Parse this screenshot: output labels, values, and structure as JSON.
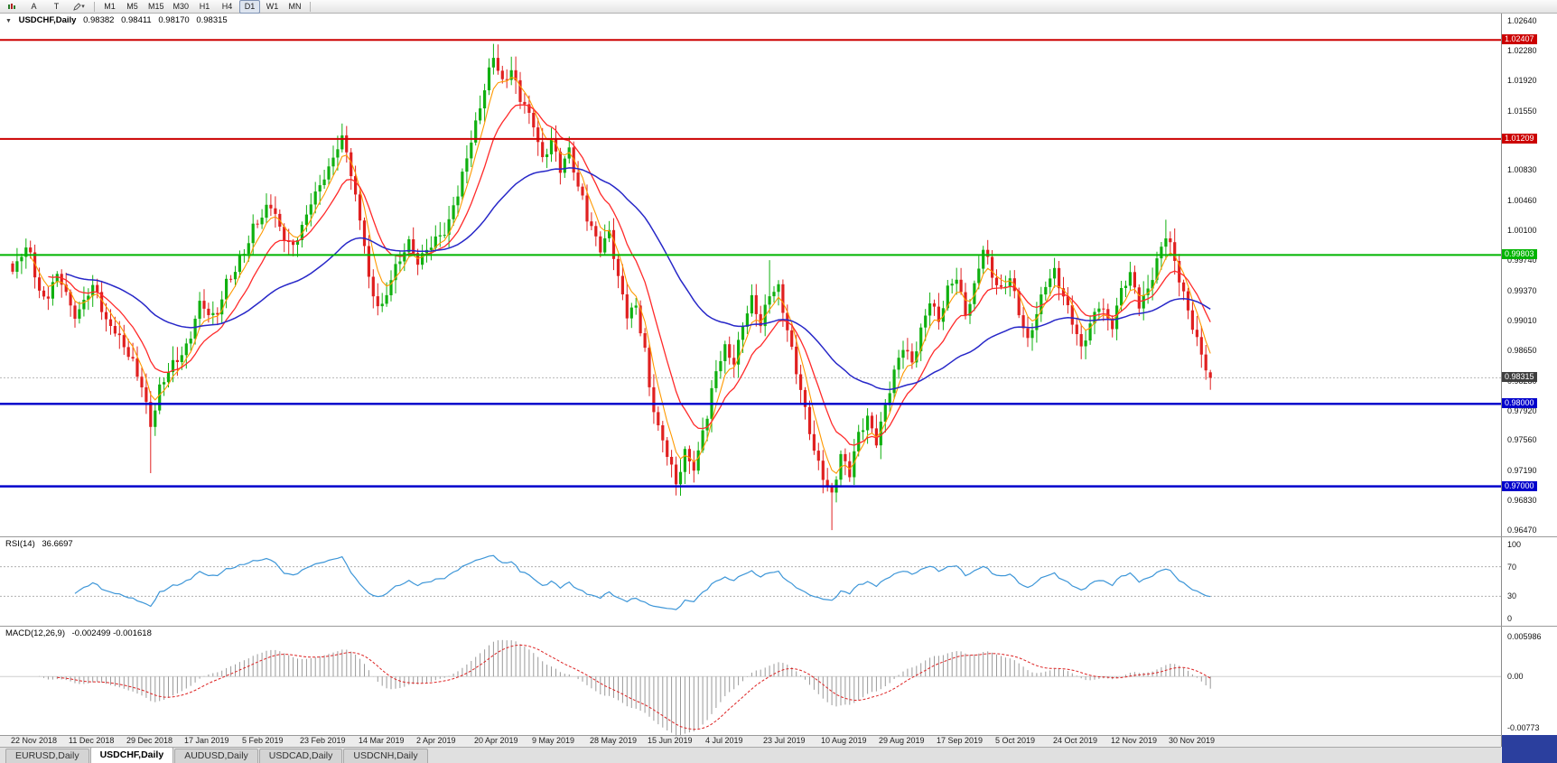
{
  "toolbar": {
    "tool_a": "A",
    "tool_t": "T",
    "chevron": "▾",
    "timeframes": [
      "M1",
      "M5",
      "M15",
      "M30",
      "H1",
      "H4",
      "D1",
      "W1",
      "MN"
    ],
    "active_timeframe": "D1"
  },
  "chart": {
    "collapse_arrow": "▼",
    "symbol_title": "USDCHF,Daily",
    "open": "0.98382",
    "high": "0.98411",
    "low": "0.98170",
    "close": "0.98315"
  },
  "rsi": {
    "title": "RSI(14)",
    "value": "36.6697",
    "axis": [
      "100",
      "70",
      "30",
      "0"
    ]
  },
  "macd": {
    "title": "MACD(12,26,9)",
    "value": "-0.002499 -0.001618",
    "axis": [
      "0.005986",
      "0.00",
      "-0.00773"
    ]
  },
  "tabs": [
    {
      "label": "EURUSD,Daily",
      "active": false
    },
    {
      "label": "USDCHF,Daily",
      "active": true
    },
    {
      "label": "AUDUSD,Daily",
      "active": false
    },
    {
      "label": "USDCAD,Daily",
      "active": false
    },
    {
      "label": "USDCNH,Daily",
      "active": false
    }
  ],
  "chart_data": {
    "type": "candlestick",
    "symbol": "USDCHF",
    "timeframe": "Daily",
    "bars_total": 270,
    "current_bar": {
      "open": 0.98382,
      "high": 0.98411,
      "low": 0.9817,
      "close": 0.98315
    },
    "current_price": 0.98315,
    "current_price_label": "0.98315",
    "price_scale": {
      "max": 1.02728,
      "min": 0.96394
    },
    "y_ticks": [
      "1.02640",
      "1.02280",
      "1.01920",
      "1.01550",
      "1.01190",
      "1.00830",
      "1.00460",
      "1.00100",
      "0.99740",
      "0.99370",
      "0.99010",
      "0.98650",
      "0.98280",
      "0.97920",
      "0.97560",
      "0.97190",
      "0.96830",
      "0.96470"
    ],
    "x_ticks": [
      {
        "label": "22 Nov 2018",
        "bar": 0
      },
      {
        "label": "11 Dec 2018",
        "bar": 13
      },
      {
        "label": "29 Dec 2018",
        "bar": 26
      },
      {
        "label": "17 Jan 2019",
        "bar": 39
      },
      {
        "label": "5 Feb 2019",
        "bar": 52
      },
      {
        "label": "23 Feb 2019",
        "bar": 65
      },
      {
        "label": "14 Mar 2019",
        "bar": 78
      },
      {
        "label": "2 Apr 2019",
        "bar": 91
      },
      {
        "label": "20 Apr 2019",
        "bar": 104
      },
      {
        "label": "9 May 2019",
        "bar": 117
      },
      {
        "label": "28 May 2019",
        "bar": 130
      },
      {
        "label": "15 Jun 2019",
        "bar": 143
      },
      {
        "label": "4 Jul 2019",
        "bar": 156
      },
      {
        "label": "23 Jul 2019",
        "bar": 169
      },
      {
        "label": "10 Aug 2019",
        "bar": 182
      },
      {
        "label": "29 Aug 2019",
        "bar": 195
      },
      {
        "label": "17 Sep 2019",
        "bar": 208
      },
      {
        "label": "5 Oct 2019",
        "bar": 221
      },
      {
        "label": "24 Oct 2019",
        "bar": 234
      },
      {
        "label": "12 Nov 2019",
        "bar": 247
      },
      {
        "label": "30 Nov 2019",
        "bar": 260
      }
    ],
    "levels": [
      {
        "label": "1.02407",
        "price": 1.02407,
        "color": "#cc0000",
        "width": 2
      },
      {
        "label": "1.01209",
        "price": 1.01209,
        "color": "#cc0000",
        "width": 2
      },
      {
        "label": "0.99803",
        "price": 0.99803,
        "color": "#00b400",
        "width": 2
      },
      {
        "label": "0.98000",
        "price": 0.98,
        "color": "#0000cc",
        "width": 2.5
      },
      {
        "label": "0.97000",
        "price": 0.97,
        "color": "#0000cc",
        "width": 2.5
      }
    ],
    "colors": {
      "up": "#10b010",
      "down": "#e02020",
      "ma_fast": "#ff9900",
      "ma_mid": "#ff2a2a",
      "ma_slow": "#2727c8",
      "rsi": "#3d96d8",
      "rsi_level": "#b0b0b0",
      "macd_hist": "#9a9a9a",
      "macd_signal": "#dd2222",
      "current_badge": "#3f3f3f",
      "current_line": "#b8b8b8"
    },
    "price_path_anchors": [
      [
        0,
        0.996
      ],
      [
        3,
        0.9985
      ],
      [
        7,
        0.993
      ],
      [
        10,
        0.9955
      ],
      [
        14,
        0.9905
      ],
      [
        18,
        0.9945
      ],
      [
        22,
        0.989
      ],
      [
        26,
        0.9862
      ],
      [
        29,
        0.9828
      ],
      [
        31,
        0.9772
      ],
      [
        33,
        0.9815
      ],
      [
        36,
        0.9848
      ],
      [
        39,
        0.9872
      ],
      [
        42,
        0.9918
      ],
      [
        45,
        0.9902
      ],
      [
        49,
        0.9958
      ],
      [
        52,
        0.9984
      ],
      [
        55,
        1.0018
      ],
      [
        58,
        1.0044
      ],
      [
        61,
        1.0004
      ],
      [
        63,
        0.9986
      ],
      [
        65,
        1.0012
      ],
      [
        68,
        1.0058
      ],
      [
        71,
        1.0088
      ],
      [
        74,
        1.0119
      ],
      [
        76,
        1.0078
      ],
      [
        78,
        1.0022
      ],
      [
        81,
        0.9932
      ],
      [
        83,
        0.9916
      ],
      [
        86,
        0.9962
      ],
      [
        89,
        0.9998
      ],
      [
        91,
        0.9976
      ],
      [
        94,
        0.999
      ],
      [
        97,
        1.0006
      ],
      [
        100,
        1.0058
      ],
      [
        102,
        1.0102
      ],
      [
        104,
        1.0136
      ],
      [
        106,
        1.0178
      ],
      [
        108,
        1.0222
      ],
      [
        110,
        1.0192
      ],
      [
        112,
        1.0208
      ],
      [
        114,
        1.0168
      ],
      [
        117,
        1.0136
      ],
      [
        119,
        1.0096
      ],
      [
        121,
        1.0124
      ],
      [
        123,
        1.0086
      ],
      [
        125,
        1.0104
      ],
      [
        127,
        1.0058
      ],
      [
        130,
        1.0016
      ],
      [
        132,
        0.9992
      ],
      [
        134,
        1.0008
      ],
      [
        136,
        0.9948
      ],
      [
        138,
        0.9906
      ],
      [
        140,
        0.992
      ],
      [
        142,
        0.9868
      ],
      [
        143,
        0.9822
      ],
      [
        145,
        0.9768
      ],
      [
        147,
        0.9736
      ],
      [
        149,
        0.9702
      ],
      [
        151,
        0.9744
      ],
      [
        153,
        0.9726
      ],
      [
        156,
        0.9782
      ],
      [
        158,
        0.9838
      ],
      [
        160,
        0.9868
      ],
      [
        162,
        0.9854
      ],
      [
        164,
        0.9898
      ],
      [
        166,
        0.9924
      ],
      [
        168,
        0.9892
      ],
      [
        170,
        0.9934
      ],
      [
        172,
        0.9944
      ],
      [
        174,
        0.9892
      ],
      [
        176,
        0.9838
      ],
      [
        178,
        0.9788
      ],
      [
        180,
        0.9742
      ],
      [
        182,
        0.9716
      ],
      [
        184,
        0.9692
      ],
      [
        186,
        0.9736
      ],
      [
        188,
        0.9712
      ],
      [
        190,
        0.9762
      ],
      [
        192,
        0.9786
      ],
      [
        194,
        0.9758
      ],
      [
        196,
        0.9796
      ],
      [
        198,
        0.9834
      ],
      [
        200,
        0.9868
      ],
      [
        202,
        0.9852
      ],
      [
        204,
        0.9892
      ],
      [
        206,
        0.9926
      ],
      [
        208,
        0.9896
      ],
      [
        210,
        0.9936
      ],
      [
        212,
        0.9956
      ],
      [
        214,
        0.9912
      ],
      [
        216,
        0.9942
      ],
      [
        218,
        0.9986
      ],
      [
        220,
        0.9952
      ],
      [
        222,
        0.9938
      ],
      [
        224,
        0.9958
      ],
      [
        226,
        0.9912
      ],
      [
        228,
        0.9872
      ],
      [
        230,
        0.9906
      ],
      [
        232,
        0.9946
      ],
      [
        234,
        0.9964
      ],
      [
        236,
        0.9932
      ],
      [
        238,
        0.9898
      ],
      [
        240,
        0.9862
      ],
      [
        242,
        0.9896
      ],
      [
        244,
        0.9924
      ],
      [
        247,
        0.9896
      ],
      [
        249,
        0.9934
      ],
      [
        251,
        0.9954
      ],
      [
        253,
        0.9922
      ],
      [
        255,
        0.9942
      ],
      [
        257,
        0.9974
      ],
      [
        259,
        1.0002
      ],
      [
        260,
        0.9988
      ],
      [
        262,
        0.995
      ],
      [
        264,
        0.9916
      ],
      [
        266,
        0.988
      ],
      [
        268,
        0.9844
      ],
      [
        269,
        0.98315
      ]
    ],
    "wick_events": [
      {
        "bar": 31,
        "low": 0.9716
      },
      {
        "bar": 108,
        "high": 1.0236
      },
      {
        "bar": 149,
        "low": 0.9689
      },
      {
        "bar": 170,
        "high": 0.9974
      },
      {
        "bar": 184,
        "low": 0.9647
      },
      {
        "bar": 259,
        "high": 1.0023
      }
    ],
    "indicators": {
      "rsi": {
        "period": 14,
        "value": 36.6697,
        "overbought": 70,
        "oversold": 30
      },
      "macd": {
        "fast": 12,
        "slow": 26,
        "signal": 9,
        "macd_value": -0.002499,
        "signal_value": -0.001618,
        "scale": {
          "max": 0.0075,
          "min": -0.0088
        }
      }
    }
  }
}
